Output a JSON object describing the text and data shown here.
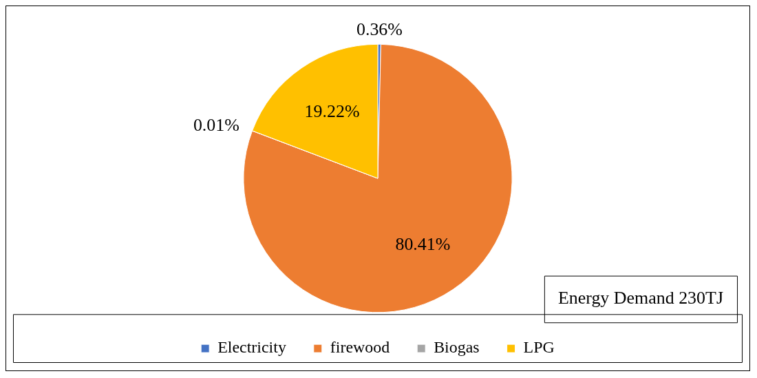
{
  "chart_data": {
    "type": "pie",
    "categories": [
      "Electricity",
      "firewood",
      "Biogas",
      "LPG"
    ],
    "values": [
      0.36,
      80.41,
      0.01,
      19.22
    ],
    "colors": [
      "#4472c4",
      "#ed7d31",
      "#a5a5a5",
      "#ffc000"
    ],
    "value_labels": [
      "0.36%",
      "80.41%",
      "0.01%",
      "19.22%"
    ],
    "annotations": [
      "Energy Demand 230TJ"
    ],
    "legend": "bottom"
  }
}
